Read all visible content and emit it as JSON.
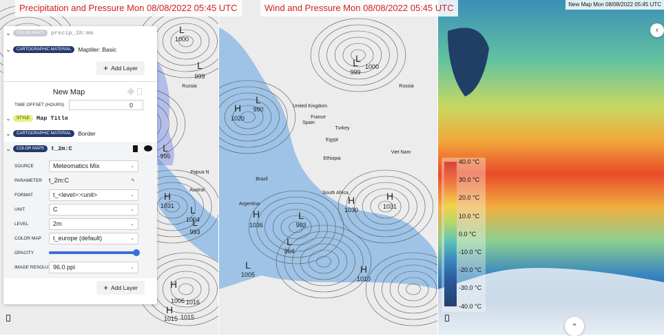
{
  "panels": [
    {
      "title": "Precipitation and Pressure Mon 08/08/2022 05:45 UTC",
      "labels": [
        "Russia",
        "L",
        "1000",
        "L",
        "999",
        "H",
        "1031",
        "L",
        "1004",
        "L",
        "993",
        "H",
        "1006",
        "1016",
        "H",
        "1015",
        "1015",
        "L",
        "995",
        "Austral",
        "Papua N"
      ]
    },
    {
      "title": "Wind and Pressure Mon 08/08/2022 05:45 UTC",
      "labels": [
        "United Kingdom",
        "France",
        "Spain",
        "Turkey",
        "Egypt",
        "Ethiopia",
        "Brazil",
        "Argentina",
        "South Africa",
        "Russia",
        "Viet Nam",
        "H",
        "1020",
        "L",
        "990",
        "H",
        "1036",
        "L",
        "963",
        "L",
        "964",
        "H",
        "1031",
        "H",
        "1030",
        "L",
        "1005",
        "H",
        "1010",
        "L",
        "999",
        "L",
        "1000"
      ]
    },
    {
      "title": "New Map Mon 08/08/2022 05:45 UTC"
    }
  ],
  "sidebar": {
    "layers_top": [
      {
        "tag": "COLOR MAPS",
        "name": "precip_1h:mm"
      },
      {
        "tag": "CARTOGRAPHIC MATERIAL",
        "name": "Maptiler: Basic"
      }
    ],
    "add_layer": "Add Layer",
    "map_name": "New Map",
    "time_offset_label": "TIME OFFSET (HOURS)",
    "time_offset_value": "0",
    "layers": [
      {
        "tag": "STYLE",
        "name": "Map Title"
      },
      {
        "tag": "CARTOGRAPHIC MATERIAL",
        "name": "Border"
      },
      {
        "tag": "COLOR MAPS",
        "name": "t_2m:C"
      }
    ],
    "fields": [
      {
        "label": "SOURCE",
        "value": "Meteomatics Mix"
      },
      {
        "label": "PARAMETER",
        "value": "t_2m:C"
      },
      {
        "label": "FORMAT",
        "value": "t_<level>:<unit>"
      },
      {
        "label": "UNIT",
        "value": "C"
      },
      {
        "label": "LEVEL",
        "value": "2m"
      },
      {
        "label": "COLOR MAP",
        "value": "t_europe (default)"
      },
      {
        "label": "OPACITY"
      },
      {
        "label": "IMAGE RESOLUTION",
        "value": "96.0 ppi"
      }
    ],
    "add_layer_2": "Add Layer"
  },
  "legend": [
    "40.0 °C",
    "30.0 °C",
    "20.0 °C",
    "10.0 °C",
    "0.0 °C",
    "-10.0 °C",
    "-20.0 °C",
    "-30.0 °C",
    "-40.0 °C"
  ]
}
